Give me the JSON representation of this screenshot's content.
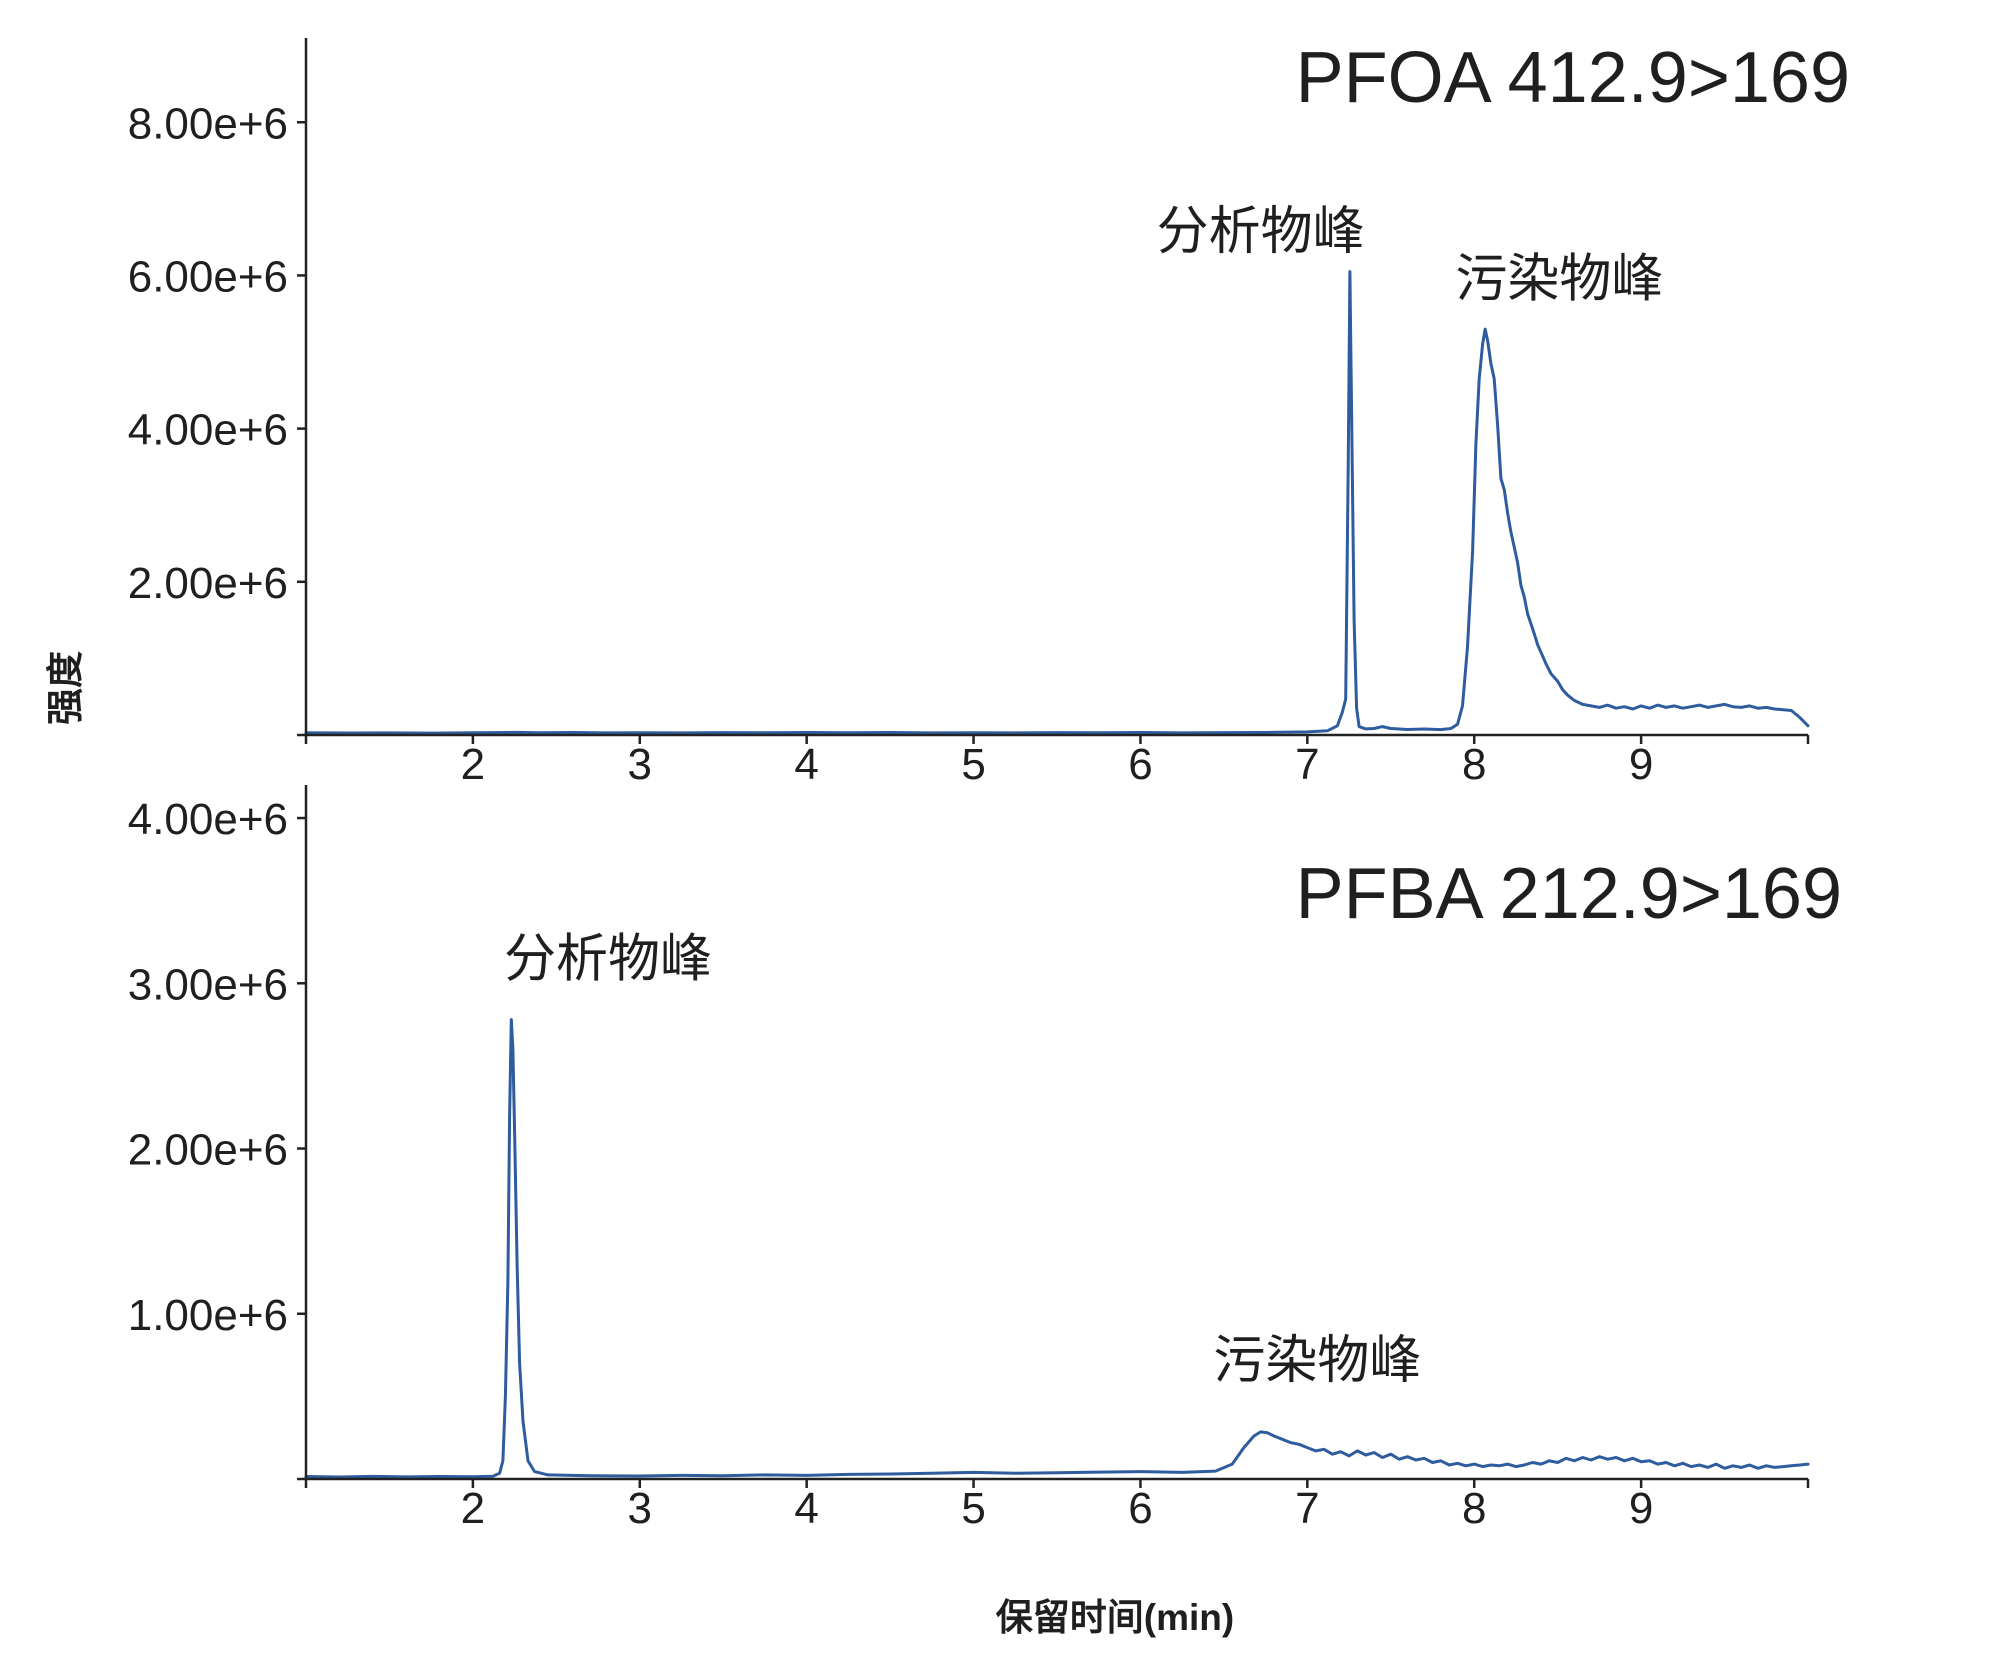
{
  "figure": {
    "ylabel": "强度",
    "xlabel": "保留时间(min)"
  },
  "colors": {
    "line": "#2f5c9e",
    "axis": "#222222",
    "text": "#1f1f1f"
  },
  "chart_data": [
    {
      "type": "line",
      "title": "PFOA 412.9>169",
      "xlim": [
        1,
        10
      ],
      "ylim": [
        0,
        9100000
      ],
      "x_ticks": [
        1,
        2,
        3,
        4,
        5,
        6,
        7,
        8,
        9,
        10
      ],
      "x_tick_labels": [
        "",
        "2",
        "3",
        "4",
        "5",
        "6",
        "7",
        "8",
        "9",
        ""
      ],
      "y_ticks": [
        0,
        2000000,
        4000000,
        6000000,
        8000000
      ],
      "y_tick_labels": [
        "",
        "2.00e+6",
        "4.00e+6",
        "6.00e+6",
        "8.00e+6"
      ],
      "grid": false,
      "annotations": [
        {
          "text": "分析物峰",
          "x": 6.72,
          "y": 6580000
        },
        {
          "text": "污染物峰",
          "x": 8.51,
          "y": 5960000
        }
      ],
      "series": [
        {
          "points": [
            [
              1.0,
              30000
            ],
            [
              1.25,
              26000
            ],
            [
              1.5,
              28000
            ],
            [
              1.75,
              25000
            ],
            [
              2.0,
              29000
            ],
            [
              2.25,
              34000
            ],
            [
              2.4,
              30000
            ],
            [
              2.6,
              32000
            ],
            [
              2.8,
              28000
            ],
            [
              3.0,
              30000
            ],
            [
              3.25,
              27000
            ],
            [
              3.5,
              31000
            ],
            [
              3.75,
              29000
            ],
            [
              4.0,
              33000
            ],
            [
              4.25,
              30000
            ],
            [
              4.5,
              32000
            ],
            [
              4.75,
              28000
            ],
            [
              5.0,
              30000
            ],
            [
              5.25,
              27000
            ],
            [
              5.5,
              31000
            ],
            [
              5.75,
              29000
            ],
            [
              6.0,
              32000
            ],
            [
              6.25,
              28000
            ],
            [
              6.5,
              31000
            ],
            [
              6.75,
              33000
            ],
            [
              7.0,
              40000
            ],
            [
              7.12,
              55000
            ],
            [
              7.18,
              120000
            ],
            [
              7.21,
              300000
            ],
            [
              7.23,
              470000
            ],
            [
              7.245,
              3500000
            ],
            [
              7.255,
              6050000
            ],
            [
              7.265,
              4200000
            ],
            [
              7.28,
              1500000
            ],
            [
              7.295,
              350000
            ],
            [
              7.31,
              110000
            ],
            [
              7.35,
              80000
            ],
            [
              7.4,
              85000
            ],
            [
              7.45,
              110000
            ],
            [
              7.5,
              85000
            ],
            [
              7.6,
              72000
            ],
            [
              7.7,
              78000
            ],
            [
              7.8,
              70000
            ],
            [
              7.86,
              85000
            ],
            [
              7.9,
              140000
            ],
            [
              7.93,
              380000
            ],
            [
              7.96,
              1150000
            ],
            [
              7.99,
              2400000
            ],
            [
              8.01,
              3800000
            ],
            [
              8.03,
              4650000
            ],
            [
              8.05,
              5100000
            ],
            [
              8.065,
              5300000
            ],
            [
              8.08,
              5150000
            ],
            [
              8.1,
              4850000
            ],
            [
              8.12,
              4650000
            ],
            [
              8.14,
              4050000
            ],
            [
              8.16,
              3350000
            ],
            [
              8.18,
              3200000
            ],
            [
              8.2,
              2900000
            ],
            [
              8.22,
              2650000
            ],
            [
              8.24,
              2450000
            ],
            [
              8.26,
              2250000
            ],
            [
              8.28,
              1950000
            ],
            [
              8.3,
              1800000
            ],
            [
              8.32,
              1580000
            ],
            [
              8.34,
              1450000
            ],
            [
              8.36,
              1320000
            ],
            [
              8.38,
              1180000
            ],
            [
              8.4,
              1080000
            ],
            [
              8.43,
              930000
            ],
            [
              8.46,
              800000
            ],
            [
              8.5,
              700000
            ],
            [
              8.53,
              590000
            ],
            [
              8.56,
              520000
            ],
            [
              8.6,
              450000
            ],
            [
              8.65,
              400000
            ],
            [
              8.7,
              380000
            ],
            [
              8.75,
              360000
            ],
            [
              8.8,
              390000
            ],
            [
              8.85,
              350000
            ],
            [
              8.9,
              370000
            ],
            [
              8.95,
              340000
            ],
            [
              9.0,
              380000
            ],
            [
              9.05,
              350000
            ],
            [
              9.1,
              390000
            ],
            [
              9.15,
              360000
            ],
            [
              9.2,
              380000
            ],
            [
              9.25,
              350000
            ],
            [
              9.3,
              370000
            ],
            [
              9.35,
              390000
            ],
            [
              9.4,
              360000
            ],
            [
              9.45,
              380000
            ],
            [
              9.5,
              400000
            ],
            [
              9.55,
              370000
            ],
            [
              9.6,
              360000
            ],
            [
              9.65,
              380000
            ],
            [
              9.7,
              350000
            ],
            [
              9.75,
              360000
            ],
            [
              9.8,
              340000
            ],
            [
              9.85,
              330000
            ],
            [
              9.9,
              320000
            ],
            [
              9.95,
              230000
            ],
            [
              10.0,
              120000
            ]
          ]
        }
      ]
    },
    {
      "type": "line",
      "title": "PFBA 212.9>169",
      "xlim": [
        1,
        10
      ],
      "ylim": [
        0,
        4200000
      ],
      "x_ticks": [
        1,
        2,
        3,
        4,
        5,
        6,
        7,
        8,
        9,
        10
      ],
      "x_tick_labels": [
        "",
        "2",
        "3",
        "4",
        "5",
        "6",
        "7",
        "8",
        "9",
        ""
      ],
      "y_ticks": [
        0,
        1000000,
        2000000,
        3000000,
        4000000
      ],
      "y_tick_labels": [
        "",
        "1.00e+6",
        "2.00e+6",
        "3.00e+6",
        "4.00e+6"
      ],
      "grid": false,
      "annotations": [
        {
          "text": "分析物峰",
          "x": 2.81,
          "y": 3150000
        },
        {
          "text": "污染物峰",
          "x": 7.06,
          "y": 720000
        }
      ],
      "series": [
        {
          "points": [
            [
              1.0,
              15000
            ],
            [
              1.2,
              12000
            ],
            [
              1.4,
              16000
            ],
            [
              1.6,
              13000
            ],
            [
              1.8,
              15000
            ],
            [
              2.0,
              14000
            ],
            [
              2.12,
              17000
            ],
            [
              2.16,
              35000
            ],
            [
              2.18,
              110000
            ],
            [
              2.195,
              500000
            ],
            [
              2.21,
              1200000
            ],
            [
              2.22,
              2200000
            ],
            [
              2.23,
              2780000
            ],
            [
              2.24,
              2600000
            ],
            [
              2.25,
              2100000
            ],
            [
              2.265,
              1300000
            ],
            [
              2.28,
              700000
            ],
            [
              2.3,
              350000
            ],
            [
              2.33,
              110000
            ],
            [
              2.37,
              45000
            ],
            [
              2.45,
              25000
            ],
            [
              2.7,
              20000
            ],
            [
              3.0,
              18000
            ],
            [
              3.25,
              22000
            ],
            [
              3.5,
              20000
            ],
            [
              3.75,
              25000
            ],
            [
              4.0,
              22000
            ],
            [
              4.25,
              28000
            ],
            [
              4.5,
              30000
            ],
            [
              4.75,
              35000
            ],
            [
              5.0,
              40000
            ],
            [
              5.25,
              35000
            ],
            [
              5.5,
              38000
            ],
            [
              5.75,
              42000
            ],
            [
              6.0,
              45000
            ],
            [
              6.25,
              40000
            ],
            [
              6.45,
              48000
            ],
            [
              6.55,
              90000
            ],
            [
              6.62,
              190000
            ],
            [
              6.68,
              260000
            ],
            [
              6.72,
              285000
            ],
            [
              6.76,
              280000
            ],
            [
              6.8,
              260000
            ],
            [
              6.85,
              240000
            ],
            [
              6.9,
              220000
            ],
            [
              6.95,
              210000
            ],
            [
              7.0,
              190000
            ],
            [
              7.05,
              170000
            ],
            [
              7.1,
              180000
            ],
            [
              7.15,
              150000
            ],
            [
              7.2,
              165000
            ],
            [
              7.25,
              140000
            ],
            [
              7.3,
              170000
            ],
            [
              7.35,
              145000
            ],
            [
              7.4,
              160000
            ],
            [
              7.45,
              130000
            ],
            [
              7.5,
              150000
            ],
            [
              7.55,
              120000
            ],
            [
              7.6,
              135000
            ],
            [
              7.65,
              115000
            ],
            [
              7.7,
              125000
            ],
            [
              7.75,
              100000
            ],
            [
              7.8,
              110000
            ],
            [
              7.85,
              85000
            ],
            [
              7.9,
              95000
            ],
            [
              7.95,
              80000
            ],
            [
              8.0,
              90000
            ],
            [
              8.05,
              75000
            ],
            [
              8.1,
              85000
            ],
            [
              8.15,
              80000
            ],
            [
              8.2,
              90000
            ],
            [
              8.25,
              75000
            ],
            [
              8.3,
              85000
            ],
            [
              8.35,
              100000
            ],
            [
              8.4,
              90000
            ],
            [
              8.45,
              110000
            ],
            [
              8.5,
              100000
            ],
            [
              8.55,
              125000
            ],
            [
              8.6,
              110000
            ],
            [
              8.65,
              130000
            ],
            [
              8.7,
              115000
            ],
            [
              8.75,
              135000
            ],
            [
              8.8,
              120000
            ],
            [
              8.85,
              130000
            ],
            [
              8.9,
              110000
            ],
            [
              8.95,
              125000
            ],
            [
              9.0,
              105000
            ],
            [
              9.05,
              110000
            ],
            [
              9.1,
              90000
            ],
            [
              9.15,
              100000
            ],
            [
              9.2,
              80000
            ],
            [
              9.25,
              95000
            ],
            [
              9.3,
              75000
            ],
            [
              9.35,
              85000
            ],
            [
              9.4,
              70000
            ],
            [
              9.45,
              90000
            ],
            [
              9.5,
              65000
            ],
            [
              9.55,
              80000
            ],
            [
              9.6,
              70000
            ],
            [
              9.65,
              85000
            ],
            [
              9.7,
              65000
            ],
            [
              9.75,
              80000
            ],
            [
              9.8,
              70000
            ],
            [
              9.85,
              75000
            ],
            [
              9.9,
              80000
            ],
            [
              9.95,
              85000
            ],
            [
              10.0,
              90000
            ]
          ]
        }
      ]
    }
  ]
}
